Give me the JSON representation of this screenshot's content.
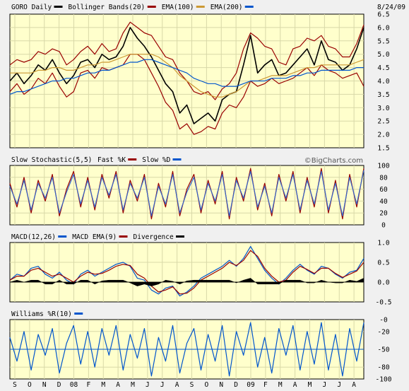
{
  "chart_data": [
    {
      "type": "line",
      "panel": "price",
      "date": "8/24/09",
      "legend": [
        {
          "label": "GORO Daily",
          "color": "#000000"
        },
        {
          "label": "Bollinger Bands(20)",
          "color": "#990000"
        },
        {
          "label": "EMA(100)",
          "color": "#cc9933"
        },
        {
          "label": "EMA(200)",
          "color": "#0055cc"
        }
      ],
      "ylim": [
        1.5,
        6.5
      ],
      "yticks": [
        "6.5",
        "6.0",
        "5.5",
        "5.0",
        "4.5",
        "4.0",
        "3.5",
        "3.0",
        "2.5",
        "2.0",
        "1.5"
      ],
      "x": [
        0,
        2,
        4,
        6,
        8,
        10,
        12,
        14,
        16,
        18,
        20,
        22,
        24,
        26,
        28,
        30,
        32,
        34,
        36,
        38,
        40,
        42,
        44,
        46,
        48,
        50,
        52,
        54,
        56,
        58,
        60,
        62,
        64,
        66,
        68,
        70,
        72,
        74,
        76,
        78,
        80,
        82,
        84,
        86,
        88,
        90,
        92,
        94,
        96,
        98,
        100
      ],
      "series": [
        {
          "role": "price",
          "values": [
            4.0,
            4.3,
            3.9,
            4.2,
            4.6,
            4.4,
            4.8,
            4.3,
            3.9,
            4.2,
            4.7,
            4.8,
            4.5,
            5.0,
            4.8,
            4.9,
            5.3,
            6.0,
            5.6,
            5.3,
            4.9,
            4.4,
            3.9,
            3.6,
            2.8,
            3.1,
            2.4,
            2.6,
            2.8,
            2.5,
            3.3,
            3.5,
            3.6,
            4.6,
            5.7,
            4.3,
            4.6,
            4.8,
            4.2,
            4.3,
            4.6,
            4.9,
            5.2,
            4.6,
            5.5,
            4.8,
            4.7,
            4.4,
            4.6,
            5.2,
            6.0
          ]
        },
        {
          "role": "bollinger-upper",
          "values": [
            4.6,
            4.8,
            4.7,
            4.8,
            5.1,
            5.0,
            5.2,
            5.1,
            4.6,
            4.8,
            5.1,
            5.3,
            5.0,
            5.4,
            5.1,
            5.2,
            5.8,
            6.2,
            6.0,
            5.8,
            5.7,
            5.3,
            4.9,
            4.8,
            4.3,
            4.0,
            3.6,
            3.5,
            3.6,
            3.3,
            3.7,
            3.9,
            4.3,
            5.2,
            5.8,
            5.6,
            5.3,
            5.2,
            4.7,
            4.6,
            5.2,
            5.3,
            5.6,
            5.5,
            5.7,
            5.3,
            5.2,
            4.9,
            4.9,
            5.4,
            6.1
          ]
        },
        {
          "role": "bollinger-lower",
          "values": [
            3.6,
            3.9,
            3.5,
            3.7,
            4.1,
            3.9,
            4.3,
            3.8,
            3.4,
            3.6,
            4.3,
            4.4,
            4.1,
            4.5,
            4.4,
            4.5,
            4.6,
            5.0,
            5.0,
            4.8,
            4.3,
            3.8,
            3.2,
            2.9,
            2.2,
            2.4,
            2.0,
            2.1,
            2.3,
            2.2,
            2.8,
            3.1,
            3.0,
            3.4,
            4.0,
            3.8,
            3.9,
            4.1,
            3.9,
            4.0,
            4.1,
            4.3,
            4.5,
            4.2,
            4.6,
            4.4,
            4.3,
            4.1,
            4.2,
            4.3,
            3.8
          ]
        },
        {
          "role": "ema-100",
          "values": [
            4.3,
            4.3,
            4.3,
            4.3,
            4.4,
            4.4,
            4.5,
            4.5,
            4.4,
            4.4,
            4.5,
            4.6,
            4.6,
            4.7,
            4.7,
            4.8,
            4.9,
            5.0,
            5.0,
            5.0,
            5.0,
            4.9,
            4.7,
            4.5,
            4.2,
            4.0,
            3.8,
            3.6,
            3.5,
            3.4,
            3.4,
            3.5,
            3.6,
            3.8,
            4.0,
            4.0,
            4.1,
            4.2,
            4.2,
            4.2,
            4.3,
            4.4,
            4.5,
            4.5,
            4.6,
            4.6,
            4.6,
            4.6,
            4.6,
            4.7,
            4.8
          ]
        },
        {
          "role": "ema-200",
          "values": [
            3.5,
            3.6,
            3.6,
            3.7,
            3.8,
            3.9,
            4.0,
            4.0,
            4.1,
            4.1,
            4.2,
            4.3,
            4.3,
            4.4,
            4.4,
            4.5,
            4.6,
            4.7,
            4.7,
            4.8,
            4.8,
            4.7,
            4.6,
            4.5,
            4.4,
            4.3,
            4.1,
            4.0,
            3.9,
            3.9,
            3.8,
            3.8,
            3.8,
            3.9,
            4.0,
            4.0,
            4.0,
            4.1,
            4.1,
            4.1,
            4.2,
            4.2,
            4.3,
            4.3,
            4.4,
            4.4,
            4.4,
            4.4,
            4.4,
            4.5,
            4.5
          ]
        }
      ]
    },
    {
      "type": "line",
      "panel": "stochastic",
      "legend": [
        {
          "label": "Slow Stochastic(5,5)",
          "color": null
        },
        {
          "label": "Fast %K",
          "color": "#990000"
        },
        {
          "label": "Slow %D",
          "color": "#0055cc"
        }
      ],
      "watermark": "©BigCharts.com",
      "ylim": [
        0,
        100
      ],
      "yticks": [
        "100",
        "80",
        "60",
        "40",
        "20",
        "0"
      ],
      "x": [
        0,
        2,
        4,
        6,
        8,
        10,
        12,
        14,
        16,
        18,
        20,
        22,
        24,
        26,
        28,
        30,
        32,
        34,
        36,
        38,
        40,
        42,
        44,
        46,
        48,
        50,
        52,
        54,
        56,
        58,
        60,
        62,
        64,
        66,
        68,
        70,
        72,
        74,
        76,
        78,
        80,
        82,
        84,
        86,
        88,
        90,
        92,
        94,
        96,
        98,
        100
      ],
      "series": [
        {
          "role": "fast-k",
          "values": [
            70,
            30,
            80,
            20,
            75,
            40,
            85,
            15,
            60,
            90,
            30,
            80,
            25,
            85,
            45,
            90,
            20,
            75,
            40,
            85,
            10,
            70,
            30,
            90,
            15,
            60,
            85,
            20,
            75,
            35,
            90,
            10,
            80,
            40,
            95,
            25,
            70,
            15,
            85,
            40,
            90,
            20,
            80,
            30,
            95,
            20,
            75,
            10,
            85,
            30,
            95
          ]
        },
        {
          "role": "slow-d",
          "values": [
            65,
            35,
            75,
            25,
            70,
            45,
            80,
            20,
            55,
            85,
            35,
            75,
            30,
            80,
            50,
            85,
            25,
            70,
            45,
            80,
            15,
            65,
            35,
            85,
            20,
            55,
            80,
            25,
            70,
            40,
            85,
            15,
            75,
            45,
            90,
            30,
            65,
            20,
            80,
            45,
            85,
            25,
            75,
            35,
            90,
            25,
            70,
            15,
            80,
            35,
            92
          ]
        }
      ]
    },
    {
      "type": "line",
      "panel": "macd",
      "legend": [
        {
          "label": "MACD(12,26)",
          "color": "#0055cc"
        },
        {
          "label": "MACD EMA(9)",
          "color": "#990000"
        },
        {
          "label": "Divergence",
          "color": "#000000"
        }
      ],
      "ylim": [
        -0.5,
        1.0
      ],
      "yticks": [
        "1.0",
        "0.5",
        "0.0",
        "-0.5"
      ],
      "x": [
        0,
        2,
        4,
        6,
        8,
        10,
        12,
        14,
        16,
        18,
        20,
        22,
        24,
        26,
        28,
        30,
        32,
        34,
        36,
        38,
        40,
        42,
        44,
        46,
        48,
        50,
        52,
        54,
        56,
        58,
        60,
        62,
        64,
        66,
        68,
        70,
        72,
        74,
        76,
        78,
        80,
        82,
        84,
        86,
        88,
        90,
        92,
        94,
        96,
        98,
        100
      ],
      "series": [
        {
          "role": "macd",
          "values": [
            0.05,
            0.2,
            0.15,
            0.35,
            0.4,
            0.2,
            0.1,
            0.25,
            0.05,
            -0.05,
            0.2,
            0.3,
            0.15,
            0.25,
            0.35,
            0.45,
            0.5,
            0.4,
            0.1,
            0.05,
            -0.2,
            -0.3,
            -0.15,
            -0.1,
            -0.35,
            -0.25,
            -0.1,
            0.1,
            0.2,
            0.3,
            0.4,
            0.55,
            0.4,
            0.6,
            0.9,
            0.6,
            0.3,
            0.1,
            -0.05,
            0.1,
            0.3,
            0.45,
            0.3,
            0.2,
            0.4,
            0.35,
            0.2,
            0.1,
            0.25,
            0.3,
            0.6
          ]
        },
        {
          "role": "signal",
          "values": [
            0.05,
            0.15,
            0.15,
            0.3,
            0.35,
            0.25,
            0.15,
            0.2,
            0.1,
            0.0,
            0.15,
            0.25,
            0.2,
            0.22,
            0.3,
            0.4,
            0.45,
            0.42,
            0.2,
            0.1,
            -0.1,
            -0.25,
            -0.2,
            -0.12,
            -0.3,
            -0.28,
            -0.15,
            0.05,
            0.15,
            0.25,
            0.35,
            0.5,
            0.42,
            0.55,
            0.8,
            0.65,
            0.35,
            0.15,
            0.0,
            0.05,
            0.25,
            0.4,
            0.32,
            0.22,
            0.35,
            0.35,
            0.22,
            0.12,
            0.2,
            0.28,
            0.5
          ]
        },
        {
          "role": "divergence",
          "values": [
            0.0,
            0.05,
            0.0,
            0.05,
            0.05,
            -0.05,
            -0.05,
            0.05,
            -0.05,
            -0.05,
            0.05,
            0.05,
            -0.05,
            0.03,
            0.05,
            0.05,
            0.05,
            -0.02,
            -0.1,
            -0.05,
            -0.1,
            -0.05,
            0.05,
            0.02,
            -0.05,
            0.03,
            0.05,
            0.05,
            0.05,
            0.05,
            0.05,
            0.05,
            -0.02,
            0.05,
            0.1,
            -0.05,
            -0.05,
            -0.05,
            -0.05,
            0.05,
            0.05,
            0.05,
            -0.02,
            -0.02,
            0.05,
            0.0,
            -0.02,
            -0.02,
            0.05,
            0.02,
            0.1
          ]
        }
      ]
    },
    {
      "type": "line",
      "panel": "williams",
      "legend": [
        {
          "label": "Williams %R(10)",
          "color": "#0055cc"
        }
      ],
      "ylim": [
        -100,
        0
      ],
      "yticks": [
        "-0",
        "-20",
        "-50",
        "-80",
        "-100"
      ],
      "reference_line": -50,
      "x": [
        0,
        2,
        4,
        6,
        8,
        10,
        12,
        14,
        16,
        18,
        20,
        22,
        24,
        26,
        28,
        30,
        32,
        34,
        36,
        38,
        40,
        42,
        44,
        46,
        48,
        50,
        52,
        54,
        56,
        58,
        60,
        62,
        64,
        66,
        68,
        70,
        72,
        74,
        76,
        78,
        80,
        82,
        84,
        86,
        88,
        90,
        92,
        94,
        96,
        98,
        100
      ],
      "series": [
        {
          "role": "williams",
          "values": [
            -30,
            -70,
            -20,
            -85,
            -25,
            -60,
            -15,
            -90,
            -40,
            -10,
            -75,
            -20,
            -80,
            -15,
            -60,
            -10,
            -85,
            -25,
            -65,
            -15,
            -95,
            -30,
            -70,
            -10,
            -90,
            -40,
            -15,
            -85,
            -25,
            -70,
            -10,
            -95,
            -20,
            -60,
            -5,
            -80,
            -30,
            -90,
            -15,
            -60,
            -10,
            -85,
            -20,
            -75,
            -5,
            -85,
            -25,
            -95,
            -15,
            -70,
            -5
          ]
        }
      ]
    }
  ],
  "x_axis": {
    "labels": [
      "S",
      "O",
      "N",
      "D",
      "08",
      "F",
      "M",
      "A",
      "M",
      "J",
      "J",
      "A",
      "S",
      "O",
      "N",
      "D",
      "09",
      "F",
      "M",
      "A",
      "M",
      "J",
      "J",
      "A"
    ]
  }
}
